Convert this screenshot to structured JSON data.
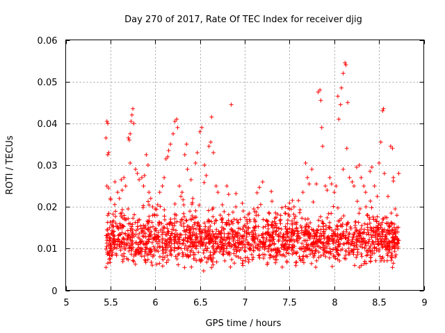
{
  "chart_data": {
    "type": "scatter",
    "title": "Day 270 of 2017, Rate Of TEC Index for receiver djig",
    "xlabel": "GPS time / hours",
    "ylabel": "ROTI / TECUs",
    "xlim": [
      5,
      9
    ],
    "ylim": [
      0,
      0.06
    ],
    "xticks": [
      5,
      5.5,
      6,
      6.5,
      7,
      7.5,
      8,
      8.5,
      9
    ],
    "xtick_labels": [
      "5",
      "5.5",
      "6",
      "6.5",
      "7",
      "7.5",
      "8",
      "8.5",
      "9"
    ],
    "yticks": [
      0,
      0.01,
      0.02,
      0.03,
      0.04,
      0.05,
      0.06
    ],
    "ytick_labels": [
      "0",
      "0.01",
      "0.02",
      "0.03",
      "0.04",
      "0.05",
      "0.06"
    ],
    "grid": true,
    "marker": "+",
    "marker_color": "#ff0000",
    "data_x_range": [
      5.45,
      8.72
    ],
    "series": [
      {
        "name": "ROTI",
        "points": [
          [
            5.45,
            0.0365
          ],
          [
            5.46,
            0.0405
          ],
          [
            5.47,
            0.04
          ],
          [
            5.48,
            0.033
          ],
          [
            5.47,
            0.0325
          ],
          [
            5.46,
            0.025
          ],
          [
            5.48,
            0.0245
          ],
          [
            5.5,
            0.022
          ],
          [
            5.47,
            0.018
          ],
          [
            5.49,
            0.015
          ],
          [
            5.46,
            0.012
          ],
          [
            5.5,
            0.01
          ],
          [
            5.52,
            0.0085
          ],
          [
            5.47,
            0.0065
          ],
          [
            5.45,
            0.0055
          ],
          [
            5.55,
            0.026
          ],
          [
            5.58,
            0.0235
          ],
          [
            5.6,
            0.022
          ],
          [
            5.62,
            0.0265
          ],
          [
            5.65,
            0.027
          ],
          [
            5.63,
            0.024
          ],
          [
            5.67,
            0.025
          ],
          [
            5.7,
            0.0365
          ],
          [
            5.72,
            0.0375
          ],
          [
            5.71,
            0.036
          ],
          [
            5.73,
            0.0405
          ],
          [
            5.75,
            0.0435
          ],
          [
            5.74,
            0.042
          ],
          [
            5.76,
            0.04
          ],
          [
            5.72,
            0.0305
          ],
          [
            5.78,
            0.029
          ],
          [
            5.8,
            0.028
          ],
          [
            5.82,
            0.0265
          ],
          [
            5.85,
            0.027
          ],
          [
            5.88,
            0.0275
          ],
          [
            5.9,
            0.0325
          ],
          [
            5.92,
            0.03
          ],
          [
            5.87,
            0.025
          ],
          [
            5.93,
            0.0235
          ],
          [
            5.95,
            0.022
          ],
          [
            5.97,
            0.02
          ],
          [
            6.0,
            0.0195
          ],
          [
            6.02,
            0.018
          ],
          [
            6.05,
            0.0235
          ],
          [
            6.08,
            0.025
          ],
          [
            6.1,
            0.027
          ],
          [
            6.12,
            0.0315
          ],
          [
            6.14,
            0.032
          ],
          [
            6.15,
            0.0335
          ],
          [
            6.17,
            0.035
          ],
          [
            6.2,
            0.0375
          ],
          [
            6.22,
            0.0405
          ],
          [
            6.24,
            0.041
          ],
          [
            6.25,
            0.039
          ],
          [
            6.27,
            0.025
          ],
          [
            6.3,
            0.0235
          ],
          [
            6.33,
            0.0325
          ],
          [
            6.35,
            0.035
          ],
          [
            6.36,
            0.029
          ],
          [
            6.4,
            0.0265
          ],
          [
            6.42,
            0.022
          ],
          [
            6.45,
            0.0305
          ],
          [
            6.47,
            0.033
          ],
          [
            6.5,
            0.038
          ],
          [
            6.52,
            0.039
          ],
          [
            6.55,
            0.03
          ],
          [
            6.57,
            0.0275
          ],
          [
            6.6,
            0.0345
          ],
          [
            6.62,
            0.0355
          ],
          [
            6.63,
            0.0415
          ],
          [
            6.65,
            0.033
          ],
          [
            6.68,
            0.025
          ],
          [
            6.7,
            0.0235
          ],
          [
            6.75,
            0.0205
          ],
          [
            6.8,
            0.025
          ],
          [
            6.85,
            0.0445
          ],
          [
            6.82,
            0.023
          ],
          [
            6.9,
            0.02
          ],
          [
            6.95,
            0.017
          ],
          [
            7.0,
            0.0175
          ],
          [
            7.05,
            0.0185
          ],
          [
            7.1,
            0.0195
          ],
          [
            7.15,
            0.018
          ],
          [
            7.2,
            0.026
          ],
          [
            7.25,
            0.0165
          ],
          [
            7.3,
            0.0155
          ],
          [
            7.35,
            0.0175
          ],
          [
            7.4,
            0.016
          ],
          [
            7.45,
            0.0185
          ],
          [
            7.5,
            0.0195
          ],
          [
            7.55,
            0.02
          ],
          [
            7.6,
            0.0215
          ],
          [
            7.65,
            0.0235
          ],
          [
            7.68,
            0.0305
          ],
          [
            7.7,
            0.027
          ],
          [
            7.72,
            0.0255
          ],
          [
            7.75,
            0.029
          ],
          [
            7.8,
            0.0255
          ],
          [
            7.82,
            0.0475
          ],
          [
            7.84,
            0.048
          ],
          [
            7.85,
            0.0455
          ],
          [
            7.86,
            0.039
          ],
          [
            7.87,
            0.0345
          ],
          [
            7.9,
            0.025
          ],
          [
            7.92,
            0.024
          ],
          [
            7.95,
            0.027
          ],
          [
            7.97,
            0.0255
          ],
          [
            8.0,
            0.0235
          ],
          [
            8.02,
            0.025
          ],
          [
            8.04,
            0.0465
          ],
          [
            8.05,
            0.041
          ],
          [
            8.07,
            0.0445
          ],
          [
            8.08,
            0.0485
          ],
          [
            8.1,
            0.052
          ],
          [
            8.12,
            0.0545
          ],
          [
            8.13,
            0.054
          ],
          [
            8.15,
            0.045
          ],
          [
            8.14,
            0.034
          ],
          [
            8.1,
            0.029
          ],
          [
            8.17,
            0.027
          ],
          [
            8.2,
            0.026
          ],
          [
            8.22,
            0.025
          ],
          [
            8.25,
            0.0295
          ],
          [
            8.28,
            0.03
          ],
          [
            8.3,
            0.027
          ],
          [
            8.33,
            0.025
          ],
          [
            8.35,
            0.0235
          ],
          [
            8.4,
            0.0285
          ],
          [
            8.42,
            0.0295
          ],
          [
            8.45,
            0.025
          ],
          [
            8.48,
            0.0225
          ],
          [
            8.5,
            0.0305
          ],
          [
            8.52,
            0.0355
          ],
          [
            8.54,
            0.043
          ],
          [
            8.55,
            0.0435
          ],
          [
            8.56,
            0.028
          ],
          [
            8.6,
            0.0225
          ],
          [
            8.63,
            0.0345
          ],
          [
            8.65,
            0.034
          ],
          [
            8.66,
            0.027
          ],
          [
            8.68,
            0.0195
          ],
          [
            8.7,
            0.018
          ],
          [
            8.72,
            0.028
          ],
          [
            8.7,
            0.015
          ],
          [
            8.71,
            0.01
          ],
          [
            8.68,
            0.008
          ],
          [
            8.66,
            0.0065
          ],
          [
            8.65,
            0.0055
          ],
          [
            8.69,
            0.0085
          ],
          [
            8.72,
            0.012
          ]
        ],
        "dense_band": {
          "x_range": [
            5.45,
            8.72
          ],
          "y_range": [
            0.004,
            0.02
          ],
          "center": 0.011,
          "count": 1800
        }
      }
    ]
  }
}
